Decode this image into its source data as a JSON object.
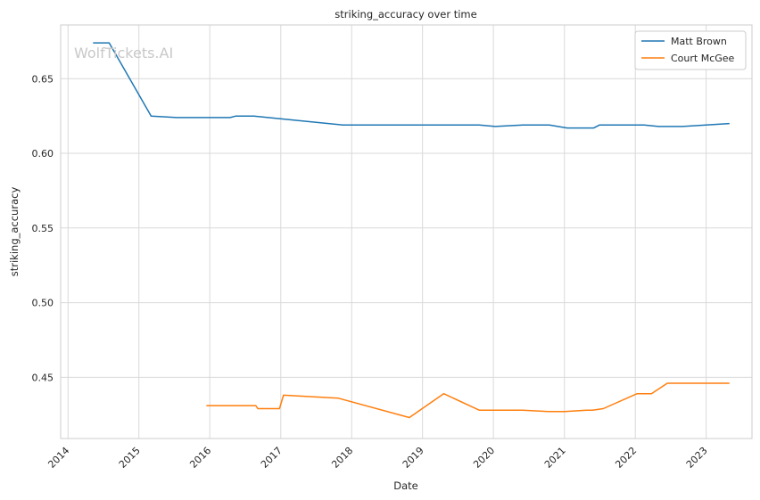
{
  "watermark": "WolfTickets.AI",
  "chart_data": {
    "type": "line",
    "title": "striking_accuracy over time",
    "xlabel": "Date",
    "ylabel": "striking_accuracy",
    "xlim": [
      "2013-11-24",
      "2023-08-25"
    ],
    "ylim": [
      0.409,
      0.686
    ],
    "x_ticks": [
      "2014",
      "2015",
      "2016",
      "2017",
      "2018",
      "2019",
      "2020",
      "2021",
      "2022",
      "2023"
    ],
    "y_ticks": [
      0.45,
      0.5,
      0.55,
      0.6,
      0.65
    ],
    "y_tick_labels": [
      "0.45",
      "0.50",
      "0.55",
      "0.60",
      "0.65"
    ],
    "grid": true,
    "legend_position": "top-right",
    "series": [
      {
        "name": "Matt Brown",
        "color": "#1f77b4",
        "points": [
          [
            "2014-05-10",
            0.674
          ],
          [
            "2014-08-01",
            0.674
          ],
          [
            "2015-03-05",
            0.625
          ],
          [
            "2015-07-15",
            0.624
          ],
          [
            "2016-04-15",
            0.624
          ],
          [
            "2016-05-15",
            0.625
          ],
          [
            "2016-08-15",
            0.625
          ],
          [
            "2017-01-10",
            0.623
          ],
          [
            "2017-11-15",
            0.619
          ],
          [
            "2019-10-20",
            0.619
          ],
          [
            "2020-01-10",
            0.618
          ],
          [
            "2020-06-01",
            0.619
          ],
          [
            "2020-10-15",
            0.619
          ],
          [
            "2021-01-15",
            0.617
          ],
          [
            "2021-06-01",
            0.617
          ],
          [
            "2021-07-01",
            0.619
          ],
          [
            "2021-10-01",
            0.619
          ],
          [
            "2022-02-15",
            0.619
          ],
          [
            "2022-05-01",
            0.618
          ],
          [
            "2022-09-01",
            0.618
          ],
          [
            "2023-05-01",
            0.62
          ]
        ]
      },
      {
        "name": "Court McGee",
        "color": "#ff7f0e",
        "points": [
          [
            "2015-12-15",
            0.431
          ],
          [
            "2016-08-25",
            0.431
          ],
          [
            "2016-09-05",
            0.429
          ],
          [
            "2016-12-25",
            0.429
          ],
          [
            "2017-01-15",
            0.438
          ],
          [
            "2017-10-25",
            0.436
          ],
          [
            "2018-10-25",
            0.423
          ],
          [
            "2019-04-20",
            0.439
          ],
          [
            "2019-10-20",
            0.428
          ],
          [
            "2020-05-30",
            0.428
          ],
          [
            "2020-10-10",
            0.427
          ],
          [
            "2020-12-31",
            0.427
          ],
          [
            "2021-04-25",
            0.428
          ],
          [
            "2021-05-25",
            0.428
          ],
          [
            "2021-07-20",
            0.429
          ],
          [
            "2022-01-10",
            0.439
          ],
          [
            "2022-03-25",
            0.439
          ],
          [
            "2022-06-15",
            0.446
          ],
          [
            "2022-10-25",
            0.446
          ],
          [
            "2023-05-01",
            0.446
          ]
        ]
      }
    ]
  }
}
